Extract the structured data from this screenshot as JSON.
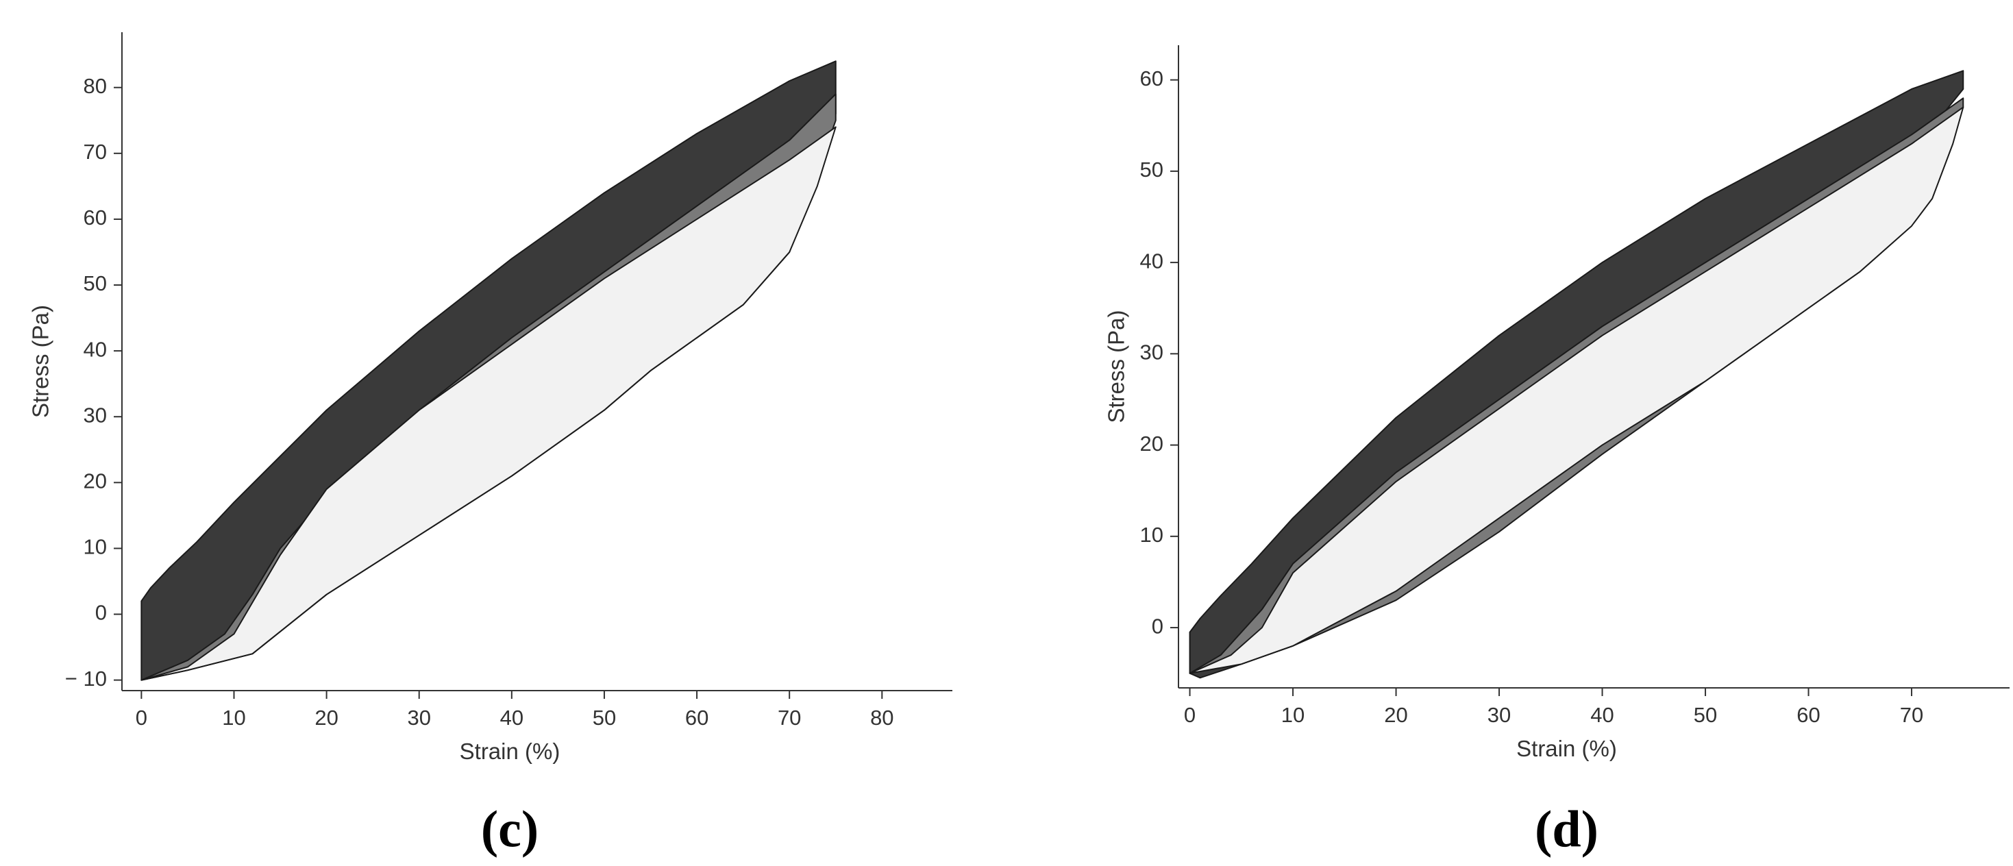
{
  "chart_data": [
    {
      "type": "area",
      "caption": "(c)",
      "x_label": "Strain (%)",
      "y_label": "Stress (Pa)",
      "xlim": [
        -2.1,
        87.6
      ],
      "ylim": [
        -11.6,
        88.4
      ],
      "xticks": [
        0,
        10,
        20,
        30,
        40,
        50,
        60,
        70,
        80
      ],
      "yticks": [
        {
          "value": -10,
          "label": "− 10"
        },
        0,
        10,
        20,
        30,
        40,
        50,
        60,
        70,
        80
      ],
      "series": [
        {
          "color": "#3a3a3a",
          "x": [
            0,
            0,
            1,
            3,
            6,
            10,
            15,
            20,
            25,
            30,
            40,
            50,
            60,
            70,
            75,
            75,
            70,
            65,
            60,
            55,
            50,
            40,
            30,
            20,
            12,
            5,
            0
          ],
          "values": [
            -10,
            2,
            4,
            7,
            11,
            17,
            24,
            31,
            37,
            43,
            54,
            64,
            73,
            81,
            84,
            76,
            55,
            47,
            42,
            37,
            31,
            21,
            12,
            3,
            -6,
            -8.5,
            -10
          ]
        },
        {
          "color": "#7a7a7a",
          "x": [
            0,
            5,
            9,
            12,
            15,
            20,
            30,
            40,
            50,
            60,
            70,
            75,
            75,
            70,
            65,
            60,
            55,
            50,
            40,
            30,
            20,
            12,
            5,
            0
          ],
          "values": [
            -10,
            -7,
            -3,
            3,
            10,
            18,
            31,
            42,
            52,
            62,
            72,
            79,
            75,
            55,
            47,
            42,
            37,
            31,
            21,
            12,
            3,
            -6,
            -8.5,
            -10
          ]
        },
        {
          "color": "#f2f2f2",
          "x": [
            0,
            5,
            10,
            15,
            20,
            30,
            40,
            50,
            60,
            70,
            75,
            73,
            70,
            65,
            60,
            55,
            50,
            40,
            30,
            20,
            12,
            5,
            0
          ],
          "values": [
            -10,
            -8,
            -3,
            9,
            19,
            31,
            41,
            51,
            60,
            69,
            74,
            65,
            55,
            47,
            42,
            37,
            31,
            21,
            12,
            3,
            -6,
            -8.5,
            -10
          ]
        }
      ]
    },
    {
      "type": "area",
      "caption": "(d)",
      "x_label": "Strain (%)",
      "y_label": "Stress (Pa)",
      "xlim": [
        -1.1,
        79.5
      ],
      "ylim": [
        -6.6,
        63.8
      ],
      "xticks": [
        0,
        10,
        20,
        30,
        40,
        50,
        60,
        70
      ],
      "yticks": [
        0,
        10,
        20,
        30,
        40,
        50,
        60
      ],
      "series": [
        {
          "color": "#3a3a3a",
          "x": [
            0,
            0,
            1,
            3,
            6,
            10,
            20,
            30,
            40,
            50,
            60,
            70,
            75,
            75,
            70,
            65,
            60,
            55,
            50,
            40,
            30,
            20,
            10,
            5,
            1,
            0
          ],
          "values": [
            -5,
            -0.5,
            1,
            3.5,
            7,
            12,
            23,
            32,
            40,
            47,
            53,
            59,
            61,
            59,
            52,
            46,
            40,
            35,
            30,
            22,
            14,
            5,
            -2,
            -4,
            -5.5,
            -5
          ]
        },
        {
          "color": "#7a7a7a",
          "x": [
            0,
            3,
            7,
            10,
            15,
            20,
            30,
            40,
            50,
            60,
            70,
            75,
            75,
            70,
            65,
            60,
            55,
            50,
            40,
            30,
            20,
            10,
            5,
            0
          ],
          "values": [
            -5,
            -3,
            2,
            7,
            12,
            17,
            25,
            33,
            40,
            47,
            54,
            58,
            57,
            44,
            39,
            35,
            31,
            27,
            19,
            10.5,
            3,
            -2,
            -4,
            -5
          ]
        },
        {
          "color": "#f2f2f2",
          "x": [
            0,
            4,
            7,
            10,
            15,
            20,
            30,
            40,
            50,
            60,
            70,
            75,
            74,
            72,
            70,
            65,
            60,
            55,
            50,
            40,
            30,
            20,
            10,
            5,
            0
          ],
          "values": [
            -5,
            -3,
            0,
            6,
            11,
            16,
            24,
            32,
            39,
            46,
            53,
            57,
            53,
            47,
            44,
            39,
            35,
            31,
            27,
            20,
            12,
            4,
            -2,
            -4,
            -5
          ]
        }
      ]
    }
  ]
}
